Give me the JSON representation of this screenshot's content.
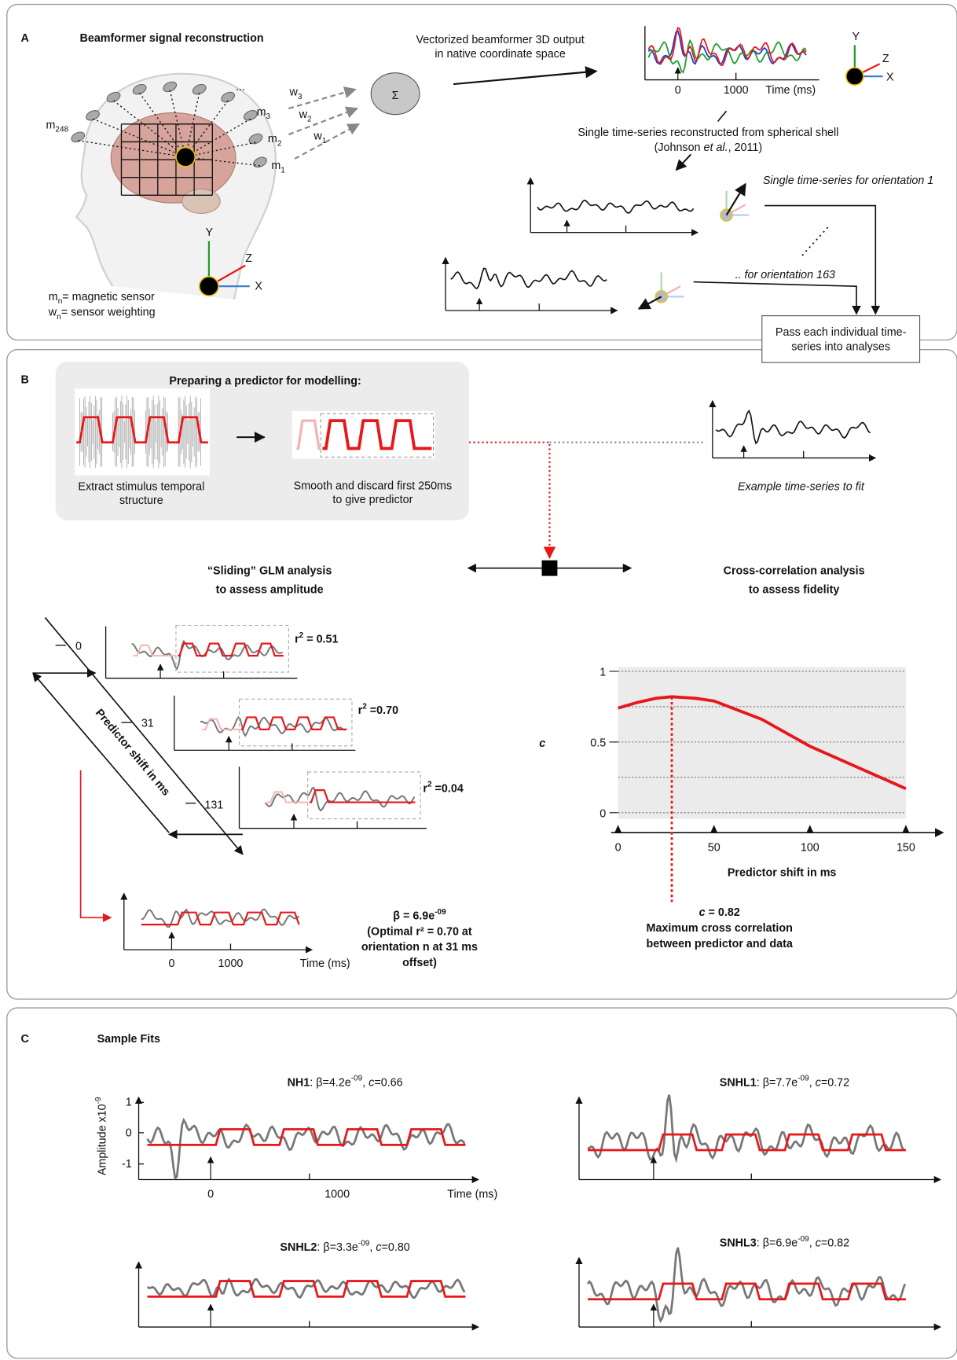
{
  "panel_a": {
    "letter": "A",
    "title": "Beamformer signal reconstruction",
    "vector_caption": [
      "Vectorized beamformer 3D output",
      "in native coordinate space"
    ],
    "sensor_labels": [
      {
        "base": "m",
        "sub": "248"
      },
      {
        "base": "m",
        "sub": "3"
      },
      {
        "base": "m",
        "sub": "2"
      },
      {
        "base": "m",
        "sub": "1"
      }
    ],
    "weight_labels": [
      {
        "base": "w",
        "sub": "3"
      },
      {
        "base": "w",
        "sub": "2"
      },
      {
        "base": "w",
        "sub": "1"
      }
    ],
    "ellipsis": "...",
    "sum": "Σ",
    "axes": {
      "y": "Y",
      "z": "Z",
      "x": "X"
    },
    "legend": [
      {
        "base": "m",
        "sub": "n",
        "rest": "= magnetic sensor"
      },
      {
        "base": "w",
        "sub": "n",
        "rest": "= sensor weighting"
      }
    ],
    "trace_ticks": [
      "0",
      "1000",
      "Time (ms)"
    ],
    "shell_caption": {
      "line1": "Single time-series reconstructed from spherical shell",
      "pre": "(Johnson ",
      "ital": "et al.",
      "post": ", 2011)"
    },
    "orientation1": "Single time-series for orientation 1",
    "orientation163": ".. for orientation 163",
    "pass_box": [
      "Pass each individual time-",
      "series into analyses"
    ]
  },
  "panel_b": {
    "letter": "B",
    "prep_title": "Preparing a predictor for modelling:",
    "extract_caption": [
      "Extract stimulus temporal",
      "structure"
    ],
    "smooth_caption": [
      "Smooth and discard first 250ms",
      "to give predictor"
    ],
    "example_caption": "Example time-series to fit",
    "glm_title": [
      "“Sliding” GLM analysis",
      "to assess amplitude"
    ],
    "xcorr_title": [
      "Cross-correlation analysis",
      "to assess fidelity"
    ],
    "shift_ticks": [
      "0",
      "31",
      "131"
    ],
    "shift_label": "Predictor shift in ms",
    "r2": [
      {
        "r": "r",
        "sup": "2",
        "rest": " = 0.51"
      },
      {
        "r": "r",
        "sup": "2",
        "rest": " =0.70"
      },
      {
        "r": "r",
        "sup": "2",
        "rest": " =0.04"
      }
    ],
    "beta": {
      "base": "β = 6.9e",
      "sup": "-09"
    },
    "optimal": [
      "(Optimal r² = 0.70 at",
      "orientation n at 31 ms",
      "offset)"
    ],
    "fit_ticks": [
      "0",
      "1000",
      "Time (ms)"
    ],
    "peak_label": {
      "sym": "c",
      "rest": " = 0.82"
    },
    "peak_caption": [
      "Maximum cross correlation",
      "between predictor and data"
    ]
  },
  "chart_data": {
    "type": "line",
    "y_label": "c",
    "x_label": "Predictor shift in ms",
    "x": [
      0,
      10,
      20,
      28,
      40,
      50,
      75,
      100,
      125,
      150
    ],
    "values": [
      0.74,
      0.78,
      0.81,
      0.82,
      0.81,
      0.79,
      0.66,
      0.47,
      0.32,
      0.17
    ],
    "color": "#e8171a",
    "xlim": [
      0,
      150
    ],
    "ylim": [
      0,
      1
    ],
    "xticks": [
      0,
      50,
      100,
      150
    ],
    "yticks": [
      0,
      0.5,
      1
    ],
    "grid": true
  },
  "panel_c": {
    "letter": "C",
    "title": "Sample Fits",
    "y_label": {
      "base": "Amplitude x10",
      "sup": "-9"
    },
    "yticks": [
      "1",
      "0",
      "-1"
    ],
    "xticks": [
      "0",
      "1000",
      "Time (ms)"
    ],
    "sep1": ": ",
    "sep2": ", ",
    "fits": [
      {
        "name": "NH1",
        "beta": "β=4.2e",
        "exp": "-09",
        "c": "c",
        "cval": "=0.66"
      },
      {
        "name": "SNHL1",
        "beta": "β=7.7e",
        "exp": "-09",
        "c": "c",
        "cval": "=0.72"
      },
      {
        "name": "SNHL2",
        "beta": "β=3.3e",
        "exp": "-09",
        "c": "c",
        "cval": "=0.80"
      },
      {
        "name": "SNHL3",
        "beta": "β=6.9e",
        "exp": "-09",
        "c": "c",
        "cval": "=0.82"
      }
    ]
  }
}
